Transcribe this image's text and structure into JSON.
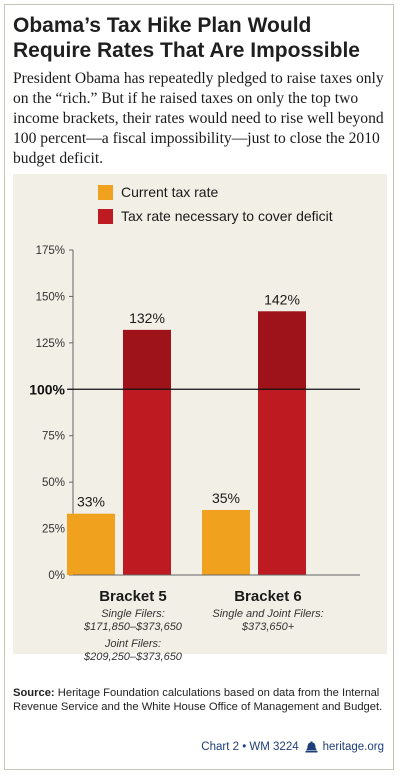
{
  "header": {
    "title": "Obama’s Tax Hike Plan Would Require Rates That Are Impossible",
    "intro": "President Obama has repeatedly pledged to raise taxes only on the “rich.” But if he raised taxes on only the top two income brackets, their rates would need to rise well beyond 100 percent—a fiscal impossibility—just to close the 2010 budget deficit."
  },
  "chart_data": {
    "type": "bar",
    "categories": [
      "Bracket 5",
      "Bracket 6"
    ],
    "category_notes": [
      [
        "Single Filers:",
        "$171,850–$373,650",
        "Joint Filers:",
        "$209,250–$373,650"
      ],
      [
        "Single and Joint Filers:",
        "$373,650+"
      ]
    ],
    "series": [
      {
        "name": "Current tax rate",
        "values": [
          33,
          35
        ],
        "labels": [
          "33%",
          "35%"
        ],
        "color": "#f0a21e"
      },
      {
        "name": "Tax rate necessary to cover deficit",
        "values": [
          132,
          142
        ],
        "labels": [
          "132%",
          "142%"
        ],
        "color": "#be1a22"
      }
    ],
    "ylim": [
      0,
      175
    ],
    "yticks": [
      "0%",
      "25%",
      "50%",
      "75%",
      "100%",
      "125%",
      "150%",
      "175%"
    ],
    "reference_line": {
      "value": 100,
      "label": "100%"
    },
    "grid": false,
    "legend": "top-left"
  },
  "source": {
    "label": "Source:",
    "text": "Heritage Foundation calculations based on data from the Internal Revenue Service and the White House Office of Management and Budget."
  },
  "footer": {
    "chart_id": "Chart 2 • WM 3224",
    "site": "heritage.org",
    "icon": "liberty-bell-icon",
    "color": "#1f3f7a"
  }
}
